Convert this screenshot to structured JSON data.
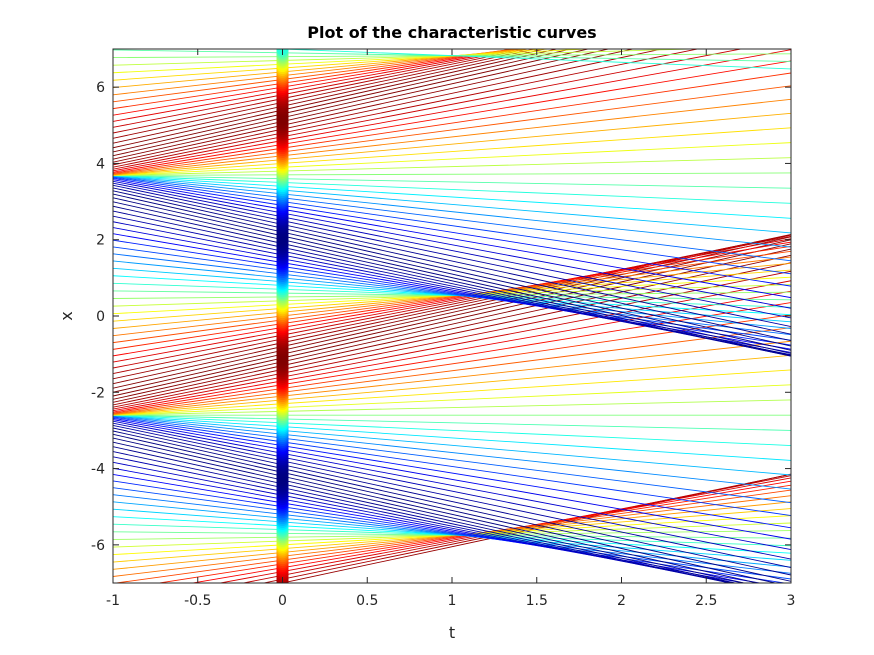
{
  "chart_data": {
    "type": "line",
    "title": "Plot of the characteristic curves",
    "xlabel": "t",
    "ylabel": "x",
    "xlim": [
      -1,
      3
    ],
    "ylim": [
      -7,
      7
    ],
    "xticks": [
      -1,
      -0.5,
      0,
      0.5,
      1,
      1.5,
      2,
      2.5,
      3
    ],
    "xtick_labels": [
      "-1",
      "-0.5",
      "0",
      "0.5",
      "1",
      "1.5",
      "2",
      "2.5",
      "3"
    ],
    "yticks": [
      -6,
      -4,
      -2,
      0,
      2,
      4,
      6
    ],
    "ytick_labels": [
      "-6",
      "-4",
      "-2",
      "0",
      "2",
      "4",
      "6"
    ],
    "grid": false,
    "legend": "none",
    "colormap": "jet",
    "curve_family": {
      "description_of_lines": "x = x0 + u0(x0) * t",
      "x0_range": [
        -7,
        7
      ],
      "x0_step": 0.1,
      "u0_function": "sin(x0 + 2.6)",
      "u0_period": 6.283185
    },
    "marker_column": {
      "t": 0,
      "x_range": [
        -7,
        7
      ],
      "marker": "filled-circle"
    }
  }
}
